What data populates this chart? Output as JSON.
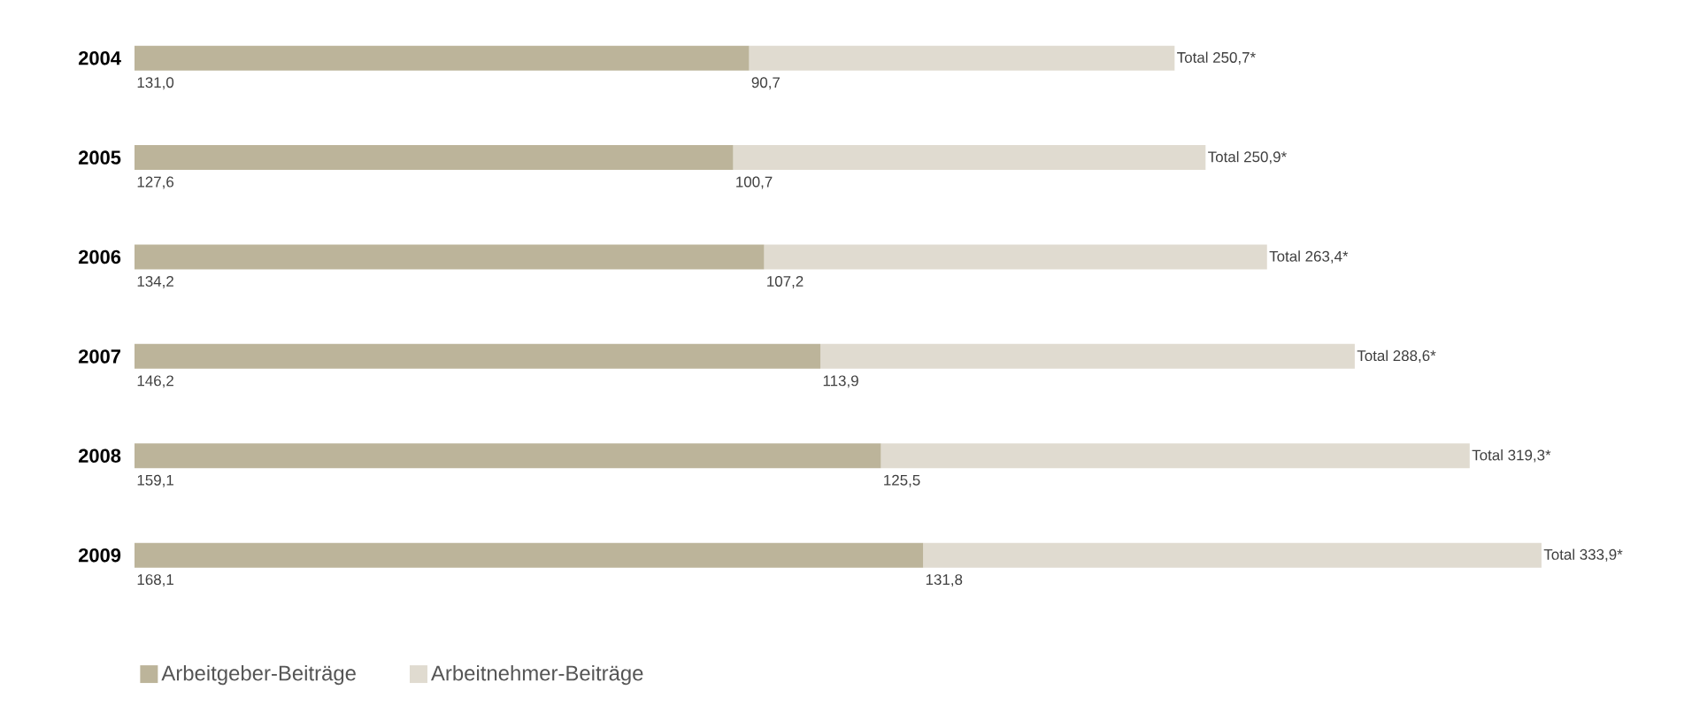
{
  "chart_data": {
    "type": "bar",
    "orientation": "horizontal",
    "stacked": true,
    "categories": [
      "2004",
      "2005",
      "2006",
      "2007",
      "2008",
      "2009"
    ],
    "series": [
      {
        "name": "Arbeitgeber-Beiträge",
        "color": "#bcb49a",
        "values": [
          131.0,
          127.6,
          134.2,
          146.2,
          159.1,
          168.1
        ],
        "value_labels": [
          "131,0",
          "127,6",
          "134,2",
          "146,2",
          "159,1",
          "168,1"
        ]
      },
      {
        "name": "Arbeitnehmer-Beiträge",
        "color": "#e0dbd0",
        "values": [
          90.7,
          100.7,
          107.2,
          113.9,
          125.5,
          131.8
        ],
        "value_labels": [
          "90,7",
          "100,7",
          "107,2",
          "113,9",
          "125,5",
          "131,8"
        ]
      }
    ],
    "totals": [
      "Total 250,7*",
      "Total 250,9*",
      "Total 263,4*",
      "Total 288,6*",
      "Total 319,3*",
      "Total 333,9*"
    ],
    "legend": "bottom left"
  }
}
